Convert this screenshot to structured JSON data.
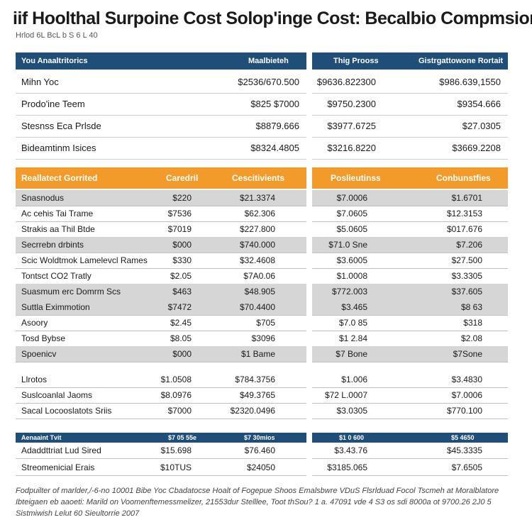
{
  "title": "iif Hoolthal Surpoine Cost Solop'inge Cost: Becalbio Compmsion",
  "subtitle": "Hrlod  6L BcL  b S 6 L 40",
  "top_left": {
    "headers": [
      "You Anaaltritorics",
      "Maalbieteh"
    ],
    "rows": [
      [
        "Mihn Yoc",
        "$2536/670.500"
      ],
      [
        "Prodo'ine Teem",
        "$825 $7000"
      ],
      [
        "Stesnss Eca Prlsde",
        "$8879.666"
      ],
      [
        "Bideamtinm Isices",
        "$8324.4805"
      ]
    ]
  },
  "top_right": {
    "headers": [
      "Thig Prooss",
      "Gistrgattowone Rortait"
    ],
    "rows": [
      [
        "$9636.822300",
        "$986.639,1550"
      ],
      [
        "$9750.2300",
        "$9354.666"
      ],
      [
        "$3977.6725",
        "$27.0305"
      ],
      [
        "$3216.8220",
        "$3669.2208"
      ]
    ]
  },
  "mid_left": {
    "headers": [
      "Reallatect Gorrited",
      "Caredril",
      "Cescitivients"
    ],
    "rows": [
      [
        "Snasnodus",
        "$220",
        "$21.3374"
      ],
      [
        "Ac cehis Tai Trame",
        "$7536",
        "$62.306"
      ],
      [
        "Strakis aa Thil Btde",
        "$7019",
        "$227.800"
      ],
      [
        "Secrrebn drbints",
        "$000",
        "$740.000"
      ],
      [
        "Scic Woldtmok Lamelevcl Rames",
        "$330",
        "$32.4608"
      ],
      [
        "Tontsct CO2 Tratly",
        "$2.05",
        "$7A0.06"
      ],
      [
        "Suasmum erc Domrm Scs",
        "$463",
        "$48.905"
      ],
      [
        "Suttla Eximmotion",
        "$7472",
        "$70.4400"
      ],
      [
        "Asoory",
        "$2.45",
        "$705"
      ],
      [
        "Tosd Bybse",
        "$8.05",
        "$3096"
      ],
      [
        "Spoenicv",
        "$000",
        "$1 Bame"
      ],
      [
        "Llrotos",
        "$1.0508",
        "$784.3756"
      ],
      [
        "Suslcoanlal Jaoms",
        "$8.0976",
        "$49.3765"
      ],
      [
        "Sacal Locooslatots Sriis",
        "$7000",
        "$2320.0496"
      ]
    ]
  },
  "mid_right": {
    "headers": [
      "Poslieutinss",
      "Conbunstfies"
    ],
    "rows": [
      [
        "$7.0006",
        "$1.6701"
      ],
      [
        "$7.0605",
        "$12.3153"
      ],
      [
        "$5.0605",
        "$017.676"
      ],
      [
        "$71.0 Sne",
        "$7.206"
      ],
      [
        "$3.6005",
        "$27.500"
      ],
      [
        "$1.0008",
        "$3.3305"
      ],
      [
        "$772.003",
        "$37.605"
      ],
      [
        "$3.465",
        "$8 63"
      ],
      [
        "$7.0 85",
        "$318"
      ],
      [
        "$1 2.84",
        "$2.08"
      ],
      [
        "$7 Bone",
        "$7Sone"
      ],
      [
        "$1.006",
        "$3.4830"
      ],
      [
        "$72 L.0007",
        "$7.0006"
      ],
      [
        "$3.0305",
        "$770.100"
      ]
    ]
  },
  "bottom_left": {
    "headers": [
      "Aenaaint Tvit",
      "$7 05 55e",
      "$7 30mios"
    ],
    "rows": [
      [
        "Adaddttriat Lud Sired",
        "$15.698",
        "$76.460"
      ],
      [
        "Streomenicial Erais",
        "$10TUS",
        "$24050"
      ]
    ]
  },
  "bottom_right": {
    "headers": [
      "$1 0 600",
      "$5 4650"
    ],
    "rows": [
      [
        "$3.43.76",
        "$45.3335"
      ],
      [
        "$3185.065",
        "$7.6505"
      ]
    ]
  },
  "footnotes": [
    "Fodpuilter of marlder,/-6-no 10001 Bibe Yoc Cbadatocse Hoalt of Fogepue Shoos Emalsbwre VDuS Flsrlduad Focol Tscmeh at Moralblatore",
    "Ibteigaen eb aaoeti: Marild on Voomenftemessmelizer, 21553dur Stelllee, Toot thSou? 1 a. 47091 vde 4 S3 os sdi 8000a ot 9700.26 2J0 5",
    "Sistmiwish Lelut 60 Sieultorrie 2007"
  ]
}
